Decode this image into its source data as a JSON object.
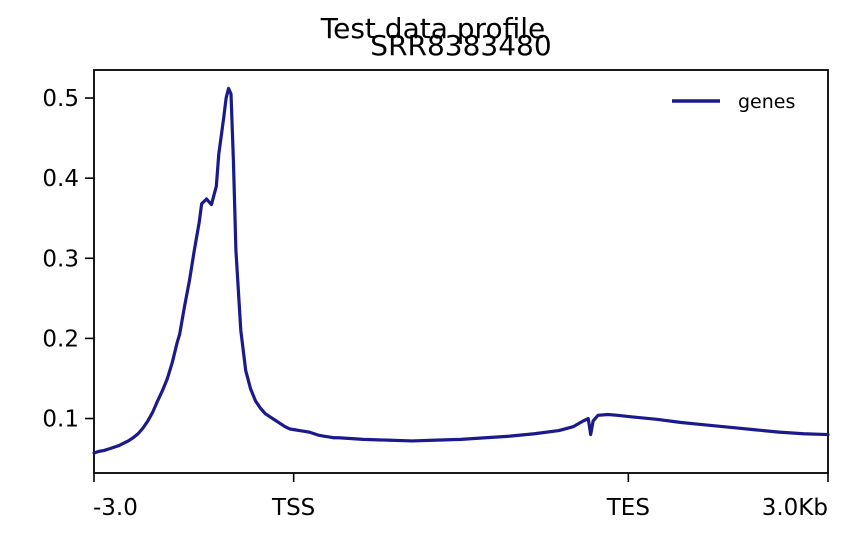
{
  "chart_data": {
    "type": "line",
    "title": "Test data profile",
    "subtitle": "SRR8383480",
    "xlabel": "",
    "ylabel": "",
    "x_ticks": [
      "-3.0",
      "TSS",
      "TES",
      "3.0Kb"
    ],
    "ylim": [
      0.032,
      0.535
    ],
    "y_ticks": [
      "0.1",
      "0.2",
      "0.3",
      "0.4",
      "0.5"
    ],
    "y_tick_values": [
      0.1,
      0.2,
      0.3,
      0.4,
      0.5
    ],
    "legend": {
      "position": "top-right",
      "entries": [
        "genes"
      ]
    },
    "grid": false,
    "series": [
      {
        "name": "genes",
        "color": "#1a1a8c",
        "points": [
          [
            0.0,
            0.057
          ],
          [
            0.02,
            0.059
          ],
          [
            0.04,
            0.06
          ],
          [
            0.06,
            0.062
          ],
          [
            0.08,
            0.064
          ],
          [
            0.1,
            0.066
          ],
          [
            0.12,
            0.069
          ],
          [
            0.14,
            0.072
          ],
          [
            0.16,
            0.076
          ],
          [
            0.18,
            0.081
          ],
          [
            0.2,
            0.088
          ],
          [
            0.22,
            0.097
          ],
          [
            0.24,
            0.108
          ],
          [
            0.26,
            0.122
          ],
          [
            0.28,
            0.135
          ],
          [
            0.3,
            0.15
          ],
          [
            0.32,
            0.17
          ],
          [
            0.34,
            0.195
          ],
          [
            0.35,
            0.205
          ],
          [
            0.37,
            0.24
          ],
          [
            0.39,
            0.272
          ],
          [
            0.41,
            0.31
          ],
          [
            0.43,
            0.345
          ],
          [
            0.44,
            0.368
          ],
          [
            0.46,
            0.374
          ],
          [
            0.48,
            0.367
          ],
          [
            0.5,
            0.39
          ],
          [
            0.51,
            0.43
          ],
          [
            0.53,
            0.475
          ],
          [
            0.54,
            0.5
          ],
          [
            0.55,
            0.512
          ],
          [
            0.56,
            0.505
          ],
          [
            0.57,
            0.42
          ],
          [
            0.58,
            0.31
          ],
          [
            0.6,
            0.21
          ],
          [
            0.62,
            0.16
          ],
          [
            0.64,
            0.137
          ],
          [
            0.66,
            0.122
          ],
          [
            0.68,
            0.113
          ],
          [
            0.7,
            0.106
          ],
          [
            0.72,
            0.102
          ],
          [
            0.74,
            0.098
          ],
          [
            0.76,
            0.094
          ],
          [
            0.78,
            0.09
          ],
          [
            0.8,
            0.087
          ],
          [
            0.82,
            0.086
          ],
          [
            0.84,
            0.085
          ],
          [
            0.86,
            0.084
          ],
          [
            0.88,
            0.083
          ],
          [
            0.9,
            0.081
          ],
          [
            0.92,
            0.079
          ],
          [
            0.94,
            0.078
          ],
          [
            0.96,
            0.077
          ],
          [
            0.98,
            0.076
          ],
          [
            1.0,
            0.076
          ],
          [
            1.1,
            0.074
          ],
          [
            1.2,
            0.073
          ],
          [
            1.3,
            0.072
          ],
          [
            1.4,
            0.073
          ],
          [
            1.5,
            0.074
          ],
          [
            1.6,
            0.076
          ],
          [
            1.7,
            0.078
          ],
          [
            1.8,
            0.081
          ],
          [
            1.9,
            0.085
          ],
          [
            1.96,
            0.09
          ],
          [
            2.0,
            0.097
          ],
          [
            2.02,
            0.1
          ],
          [
            2.03,
            0.08
          ],
          [
            2.04,
            0.097
          ],
          [
            2.06,
            0.104
          ],
          [
            2.1,
            0.105
          ],
          [
            2.14,
            0.104
          ],
          [
            2.2,
            0.102
          ],
          [
            2.3,
            0.099
          ],
          [
            2.4,
            0.095
          ],
          [
            2.5,
            0.092
          ],
          [
            2.6,
            0.089
          ],
          [
            2.7,
            0.086
          ],
          [
            2.8,
            0.083
          ],
          [
            2.9,
            0.081
          ],
          [
            3.0,
            0.08
          ]
        ]
      }
    ]
  }
}
